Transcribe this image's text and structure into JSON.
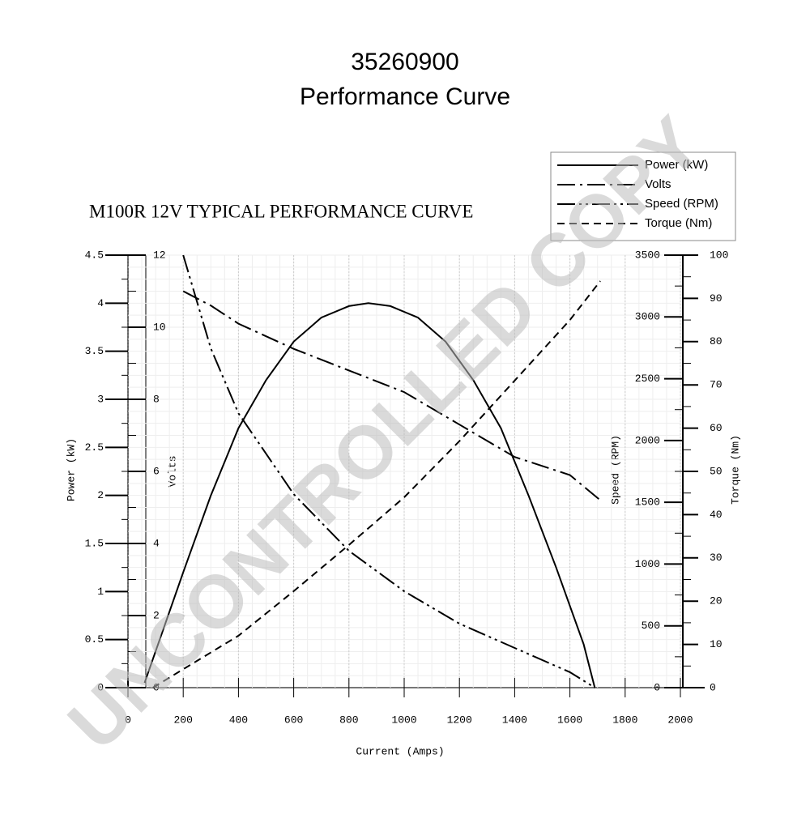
{
  "chart_data": {
    "type": "line",
    "title": "35260900",
    "subtitle": "Performance Curve",
    "chart_heading": "M100R 12V TYPICAL PERFORMANCE CURVE",
    "watermark": "UNCONTROLLED COPY",
    "xlabel": "Current (Amps)",
    "ylabel": "Power (kW)",
    "y2label": "Volts",
    "y3label": "Speed (RPM)",
    "y4label": "Torque (Nm)",
    "xlim": [
      0,
      2000
    ],
    "xticks": [
      0,
      200,
      400,
      600,
      800,
      1000,
      1200,
      1400,
      1600,
      1800,
      2000
    ],
    "ylim": [
      0,
      4.5
    ],
    "yticks": [
      0,
      0.5,
      1,
      1.5,
      2,
      2.5,
      3,
      3.5,
      4,
      4.5
    ],
    "y2lim": [
      0,
      12
    ],
    "y2ticks": [
      0,
      2,
      4,
      6,
      8,
      10,
      12
    ],
    "y3lim": [
      0,
      3500
    ],
    "y3ticks": [
      0,
      500,
      1000,
      1500,
      2000,
      2500,
      3000,
      3500
    ],
    "y4lim": [
      0,
      100
    ],
    "y4ticks": [
      0,
      10,
      20,
      30,
      40,
      50,
      60,
      70,
      80,
      90,
      100
    ],
    "grid": true,
    "legend": "top-right",
    "series": [
      {
        "name": "Power (kW)",
        "color": "#000000",
        "dash": "solid",
        "axis": "y",
        "x": [
          60,
          200,
          300,
          400,
          500,
          600,
          700,
          800,
          870,
          950,
          1050,
          1150,
          1250,
          1350,
          1450,
          1550,
          1650,
          1690
        ],
        "values": [
          0.05,
          1.2,
          2.0,
          2.7,
          3.2,
          3.6,
          3.85,
          3.97,
          4.0,
          3.97,
          3.85,
          3.6,
          3.2,
          2.7,
          2.0,
          1.25,
          0.45,
          0
        ]
      },
      {
        "name": "Volts",
        "color": "#000000",
        "dash": "dashdot",
        "axis": "y2",
        "x": [
          200,
          300,
          400,
          600,
          800,
          1000,
          1200,
          1400,
          1600,
          1710
        ],
        "values": [
          11.0,
          10.6,
          10.1,
          9.4,
          8.8,
          8.2,
          7.3,
          6.4,
          5.9,
          5.2
        ]
      },
      {
        "name": "Speed (RPM)",
        "color": "#000000",
        "dash": "dashdotdot",
        "axis": "y3",
        "x": [
          200,
          300,
          400,
          600,
          800,
          1000,
          1200,
          1400,
          1600,
          1690
        ],
        "values": [
          3500,
          2745,
          2220,
          1566,
          1107,
          780,
          518,
          321,
          125,
          0
        ]
      },
      {
        "name": "Torque (Nm)",
        "color": "#000000",
        "dash": "dashed",
        "axis": "y4",
        "x": [
          90,
          400,
          600,
          800,
          1000,
          1200,
          1400,
          1600,
          1710
        ],
        "values": [
          0,
          12,
          22.3,
          33,
          44,
          57,
          71,
          85,
          94
        ]
      }
    ]
  }
}
